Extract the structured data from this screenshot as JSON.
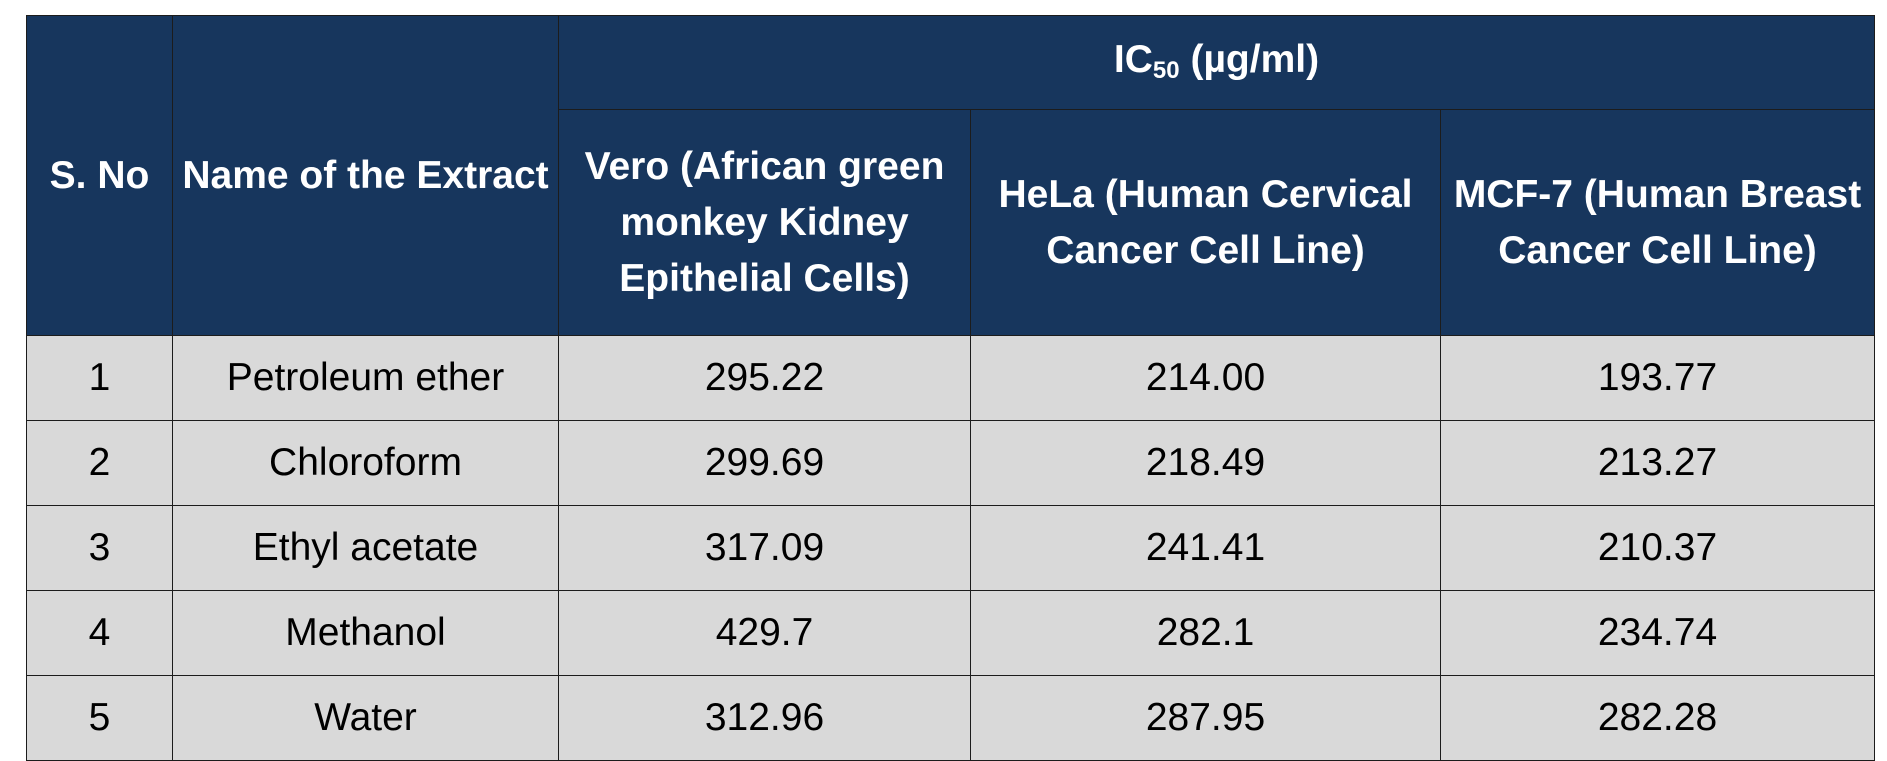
{
  "table": {
    "headers": {
      "sno": "S. No",
      "name": "Name of the Extract",
      "group_prefix": "IC",
      "group_subscript": "50",
      "group_suffix": " (µg/ml)",
      "vero": "Vero (African green monkey Kidney Epithelial Cells)",
      "hela": "HeLa (Human Cervical Cancer Cell Line)",
      "mcf7": "MCF-7 (Human Breast Cancer Cell Line)"
    },
    "rows": [
      {
        "sno": "1",
        "name": "Petroleum ether",
        "vero": "295.22",
        "hela": "214.00",
        "mcf7": "193.77"
      },
      {
        "sno": "2",
        "name": "Chloroform",
        "vero": "299.69",
        "hela": "218.49",
        "mcf7": "213.27"
      },
      {
        "sno": "3",
        "name": "Ethyl acetate",
        "vero": "317.09",
        "hela": "241.41",
        "mcf7": "210.37"
      },
      {
        "sno": "4",
        "name": "Methanol",
        "vero": "429.7",
        "hela": "282.1",
        "mcf7": "234.74"
      },
      {
        "sno": "5",
        "name": "Water",
        "vero": "312.96",
        "hela": "287.95",
        "mcf7": "282.28"
      }
    ]
  }
}
